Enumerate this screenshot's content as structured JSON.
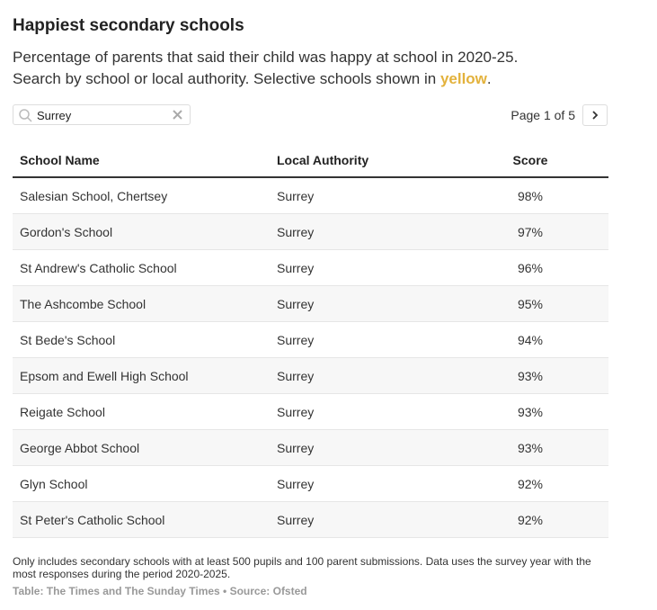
{
  "header": {
    "title": "Happiest secondary schools",
    "subtitle_line1": "Percentage of parents that said their child was happy at school in 2020-25.",
    "subtitle_line2": "Search by school or local authority. Selective schools shown in ",
    "subtitle_highlight": "yellow",
    "subtitle_end": "."
  },
  "search": {
    "value": "Surrey"
  },
  "pagination": {
    "label": "Page 1 of 5"
  },
  "table": {
    "columns": [
      "School Name",
      "Local Authority",
      "Score"
    ],
    "rows": [
      [
        "Salesian School, Chertsey",
        "Surrey",
        "98%"
      ],
      [
        "Gordon's School",
        "Surrey",
        "97%"
      ],
      [
        "St Andrew's Catholic School",
        "Surrey",
        "96%"
      ],
      [
        "The Ashcombe School",
        "Surrey",
        "95%"
      ],
      [
        "St Bede's School",
        "Surrey",
        "94%"
      ],
      [
        "Epsom and Ewell High School",
        "Surrey",
        "93%"
      ],
      [
        "Reigate School",
        "Surrey",
        "93%"
      ],
      [
        "George Abbot School",
        "Surrey",
        "93%"
      ],
      [
        "Glyn School",
        "Surrey",
        "92%"
      ],
      [
        "St Peter's Catholic School",
        "Surrey",
        "92%"
      ]
    ]
  },
  "footer": {
    "note": "Only includes secondary schools with at least 500 pupils and 100 parent submissions. Data uses the survey year with the most responses during the period 2020-2025.",
    "source": "Table: The Times and The Sunday Times • Source: Ofsted"
  }
}
